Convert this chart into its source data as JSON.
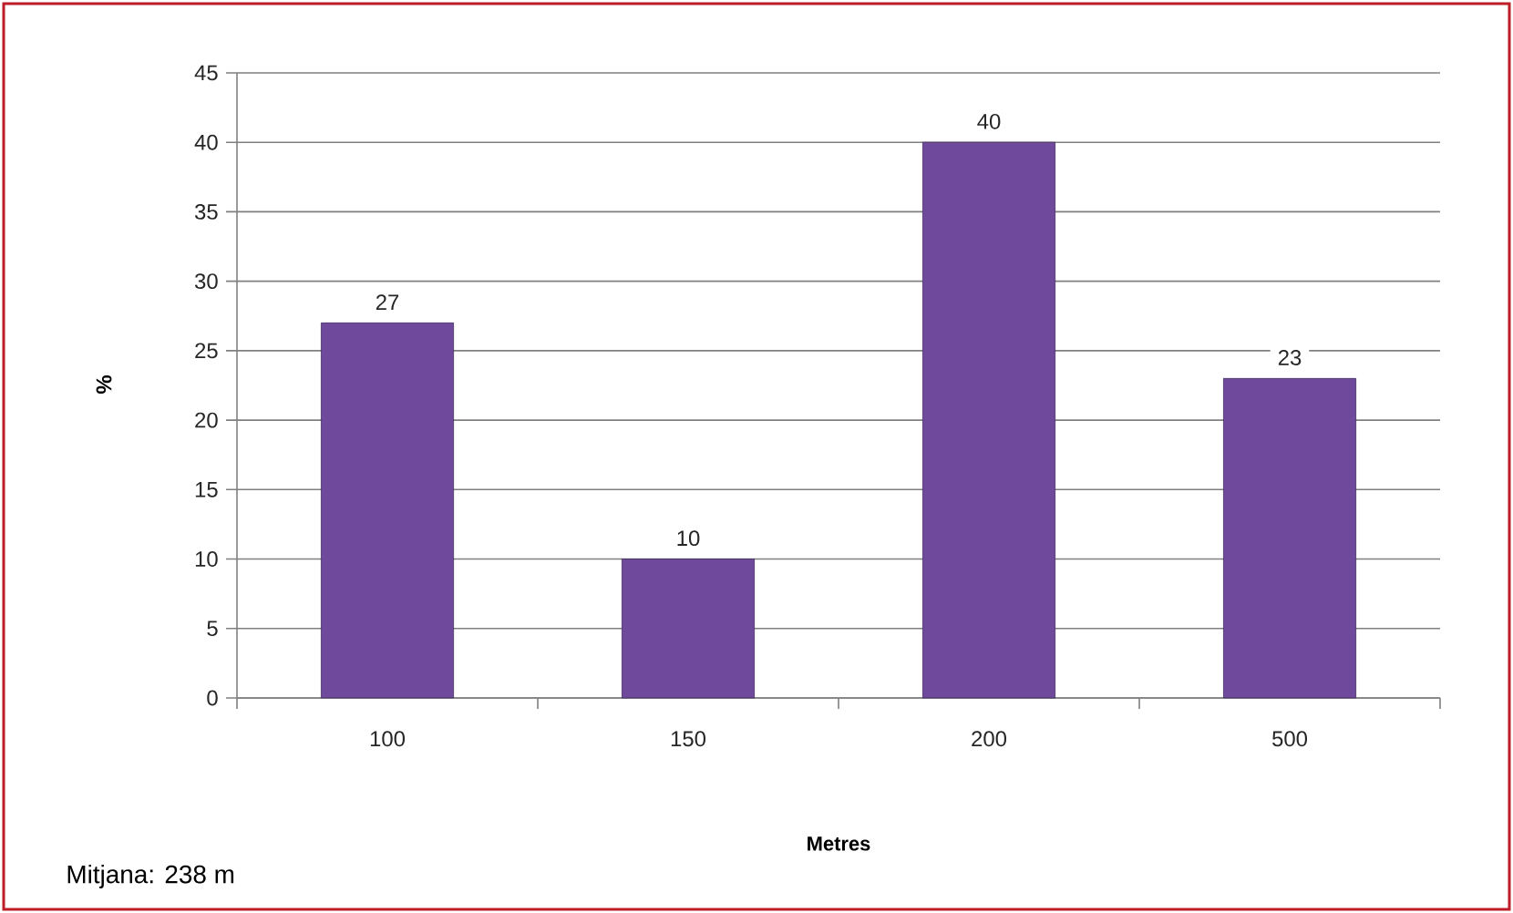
{
  "chart_data": {
    "type": "bar",
    "xlabel": "Metres",
    "ylabel": "%",
    "categories": [
      "100",
      "150",
      "200",
      "500"
    ],
    "values": [
      27,
      10,
      40,
      23
    ],
    "color": "#6f4a9c",
    "ylim": [
      0,
      45
    ],
    "yticks": [
      0,
      5,
      10,
      15,
      20,
      25,
      30,
      35,
      40,
      45
    ],
    "grid": "y",
    "data_labels": true,
    "annotations": [
      "Mitjana: 238 m"
    ]
  }
}
